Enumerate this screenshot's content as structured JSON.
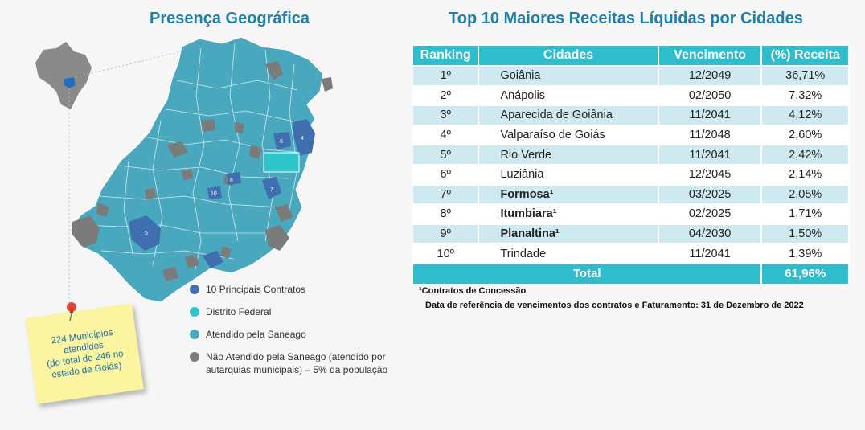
{
  "left_title": "Presença Geográfica",
  "right_title": "Top 10 Maiores Receitas Líquidas por Cidades",
  "table": {
    "headers": [
      "Ranking",
      "Cidades",
      "Vencimento",
      "(%) Receita"
    ],
    "rows": [
      {
        "rank": "1º",
        "city": "Goiânia",
        "due": "12/2049",
        "revenue": "36,71%",
        "bold": false
      },
      {
        "rank": "2º",
        "city": "Anápolis",
        "due": "02/2050",
        "revenue": "7,32%",
        "bold": false
      },
      {
        "rank": "3º",
        "city": "Aparecida de Goiânia",
        "due": "11/2041",
        "revenue": "4,12%",
        "bold": false
      },
      {
        "rank": "4º",
        "city": "Valparaíso de Goiás",
        "due": "11/2048",
        "revenue": "2,60%",
        "bold": false
      },
      {
        "rank": "5º",
        "city": "Rio Verde",
        "due": "11/2041",
        "revenue": "2,42%",
        "bold": false
      },
      {
        "rank": "6º",
        "city": "Luziânia",
        "due": "12/2045",
        "revenue": "2,14%",
        "bold": false
      },
      {
        "rank": "7º",
        "city": "Formosa¹",
        "due": "03/2025",
        "revenue": "2,05%",
        "bold": true
      },
      {
        "rank": "8º",
        "city": "Itumbiara¹",
        "due": "02/2025",
        "revenue": "1,71%",
        "bold": true
      },
      {
        "rank": "9º",
        "city": "Planaltina¹",
        "due": "04/2030",
        "revenue": "1,50%",
        "bold": true
      },
      {
        "rank": "10º",
        "city": "Trindade",
        "due": "11/2041",
        "revenue": "1,39%",
        "bold": false
      }
    ],
    "total_label": "Total",
    "total_value": "61,96%"
  },
  "footnotes": {
    "concession": "¹Contratos de Concessão",
    "reference": "Data de referência de vencimentos dos contratos e Faturamento: 31 de Dezembro de 2022"
  },
  "legend": [
    {
      "label": "10 Principais Contratos",
      "color": "#3f6fae"
    },
    {
      "label": "Distrito Federal",
      "color": "#2fc4c9"
    },
    {
      "label": "Atendido pela Saneago",
      "color": "#49a7be"
    },
    {
      "label": "Não Atendido pela Saneago (atendido por autarquias municipais) – 5% da população",
      "color": "#7b7b7b"
    }
  ],
  "note": "224 Municípios\natendidos\n(do total de 246 no\nestado de Goiás)",
  "map_labels": [
    "6",
    "4",
    "5",
    "7",
    "8",
    "10"
  ],
  "colors": {
    "accent": "#2fbccd",
    "title": "#1f7fa8",
    "row_alt": "#cfe9f1",
    "served": "#49a7be",
    "top_contracts": "#3f6fae",
    "federal_district": "#2fc4c9",
    "not_served": "#7b7b7b"
  }
}
